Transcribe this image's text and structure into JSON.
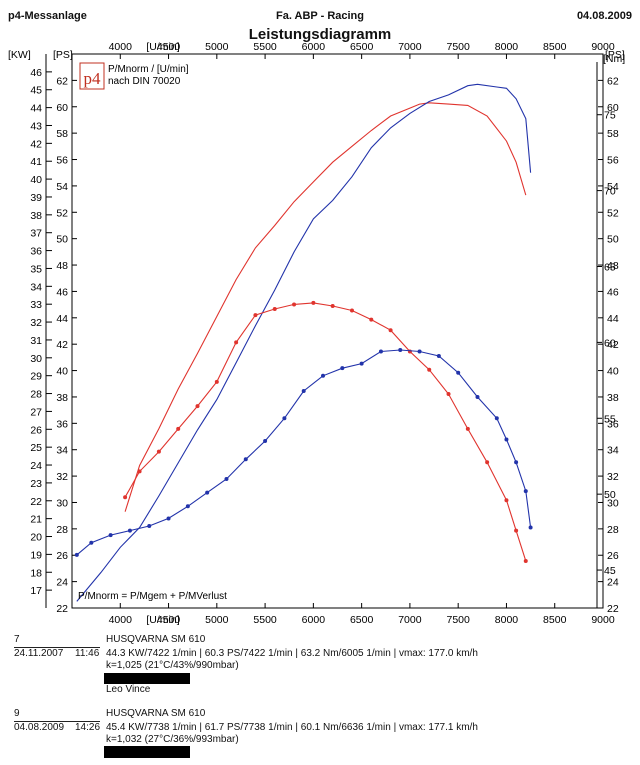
{
  "header": {
    "left": "p4-Messanlage",
    "center": "Fa. ABP - Racing",
    "right": "04.08.2009"
  },
  "title": "Leistungsdiagramm",
  "logo": {
    "text": "p4"
  },
  "legend": {
    "line1": "P/Mnorm / [U/min]",
    "line2": "nach DIN 70020"
  },
  "formula": "P/Mnorm = P/Mgem + P/MVerlust",
  "chart_data": {
    "type": "line",
    "title": "Leistungsdiagramm",
    "x_axis": {
      "label": "[U/min]",
      "min": 3500,
      "max": 9000,
      "ticks": [
        4000,
        4500,
        5000,
        5500,
        6000,
        6500,
        7000,
        7500,
        8000,
        8500,
        9000
      ],
      "positions": [
        "top",
        "bottom"
      ]
    },
    "y_axes": {
      "kw": {
        "label": "[KW]",
        "min": 16,
        "max": 47,
        "ticks": [
          17,
          18,
          19,
          20,
          21,
          22,
          23,
          24,
          25,
          26,
          27,
          28,
          29,
          30,
          31,
          32,
          33,
          34,
          35,
          36,
          37,
          38,
          39,
          40,
          41,
          42,
          43,
          44,
          45,
          46
        ]
      },
      "ps": {
        "label": "[PS]",
        "min": 22,
        "max": 64,
        "ticks": [
          22,
          24,
          26,
          28,
          30,
          32,
          34,
          36,
          38,
          40,
          42,
          44,
          46,
          48,
          50,
          52,
          54,
          56,
          58,
          60,
          62
        ]
      },
      "nm": {
        "label": "[Nm]",
        "min": 42.5,
        "max": 79,
        "ticks": [
          45,
          50,
          55,
          60,
          65,
          70,
          75
        ]
      }
    },
    "grid": false,
    "series": [
      {
        "name": "7",
        "color": "#e0342e",
        "quantity": "power",
        "axis": "ps",
        "x": [
          4050,
          4200,
          4400,
          4600,
          4800,
          5000,
          5200,
          5400,
          5600,
          5800,
          6000,
          6200,
          6400,
          6600,
          6800,
          7000,
          7100,
          7200,
          7400,
          7600,
          7800,
          8000,
          8100,
          8200
        ],
        "y": [
          29.3,
          32.8,
          35.6,
          38.6,
          41.3,
          44.1,
          46.9,
          49.3,
          51.0,
          52.8,
          54.3,
          55.8,
          57.0,
          58.2,
          59.3,
          59.9,
          60.2,
          60.3,
          60.2,
          60.1,
          59.3,
          57.4,
          55.8,
          53.3
        ]
      },
      {
        "name": "9",
        "color": "#2233aa",
        "quantity": "power",
        "axis": "ps",
        "x": [
          3550,
          3800,
          4000,
          4200,
          4400,
          4600,
          4800,
          5000,
          5200,
          5400,
          5600,
          5800,
          6000,
          6200,
          6400,
          6600,
          6800,
          7000,
          7200,
          7400,
          7600,
          7700,
          7900,
          8000,
          8100,
          8200,
          8250
        ],
        "y": [
          22.5,
          24.7,
          26.6,
          28.1,
          30.5,
          33.0,
          35.5,
          37.8,
          40.6,
          43.4,
          46.1,
          49.0,
          51.5,
          52.9,
          54.7,
          56.9,
          58.4,
          59.5,
          60.4,
          60.9,
          61.6,
          61.7,
          61.5,
          61.4,
          60.6,
          59.1,
          55.0
        ]
      },
      {
        "name": "7",
        "color": "#e0342e",
        "quantity": "torque",
        "axis": "nm",
        "x": [
          4050,
          4200,
          4400,
          4600,
          4800,
          5000,
          5200,
          5400,
          5600,
          5800,
          6000,
          6200,
          6400,
          6600,
          6800,
          7000,
          7200,
          7400,
          7600,
          7800,
          8000,
          8100,
          8200
        ],
        "y": [
          49.8,
          51.5,
          52.8,
          54.3,
          55.8,
          57.4,
          60.0,
          61.8,
          62.2,
          62.5,
          62.6,
          62.4,
          62.1,
          61.5,
          60.8,
          59.4,
          58.2,
          56.6,
          54.3,
          52.1,
          49.6,
          47.6,
          45.6
        ]
      },
      {
        "name": "9",
        "color": "#2233aa",
        "quantity": "torque",
        "axis": "nm",
        "x": [
          3550,
          3700,
          3900,
          4100,
          4300,
          4500,
          4700,
          4900,
          5100,
          5300,
          5500,
          5700,
          5900,
          6100,
          6300,
          6500,
          6700,
          6900,
          7100,
          7300,
          7500,
          7700,
          7900,
          8000,
          8100,
          8200,
          8250
        ],
        "y": [
          46.0,
          46.8,
          47.3,
          47.6,
          47.9,
          48.4,
          49.2,
          50.1,
          51.0,
          52.3,
          53.5,
          55.0,
          56.8,
          57.8,
          58.3,
          58.6,
          59.4,
          59.5,
          59.4,
          59.1,
          58.0,
          56.4,
          55.0,
          53.6,
          52.1,
          50.2,
          47.8
        ]
      }
    ]
  },
  "runs": [
    {
      "number": "7",
      "date": "24.11.2007",
      "time": "11:46",
      "vehicle": "HUSQVARNA SM 610",
      "summary": "44.3 KW/7422 1/min  |  60.3 PS/7422 1/min  |  63.2 Nm/6005 1/min | vmax: 177.0 km/h",
      "conditions": "k=1,025 (21°C/43%/990mbar)",
      "note": "Leo Vince",
      "color": "#e0342e"
    },
    {
      "number": "9",
      "date": "04.08.2009",
      "time": "14:26",
      "vehicle": "HUSQVARNA SM 610",
      "summary": "45.4 KW/7738 1/min  |  61.7 PS/7738 1/min  |  60.1 Nm/6636 1/min | vmax: 177.1 km/h",
      "conditions": "k=1,032 (27°C/36%/993mbar)",
      "note": "",
      "color": "#2233aa"
    }
  ]
}
